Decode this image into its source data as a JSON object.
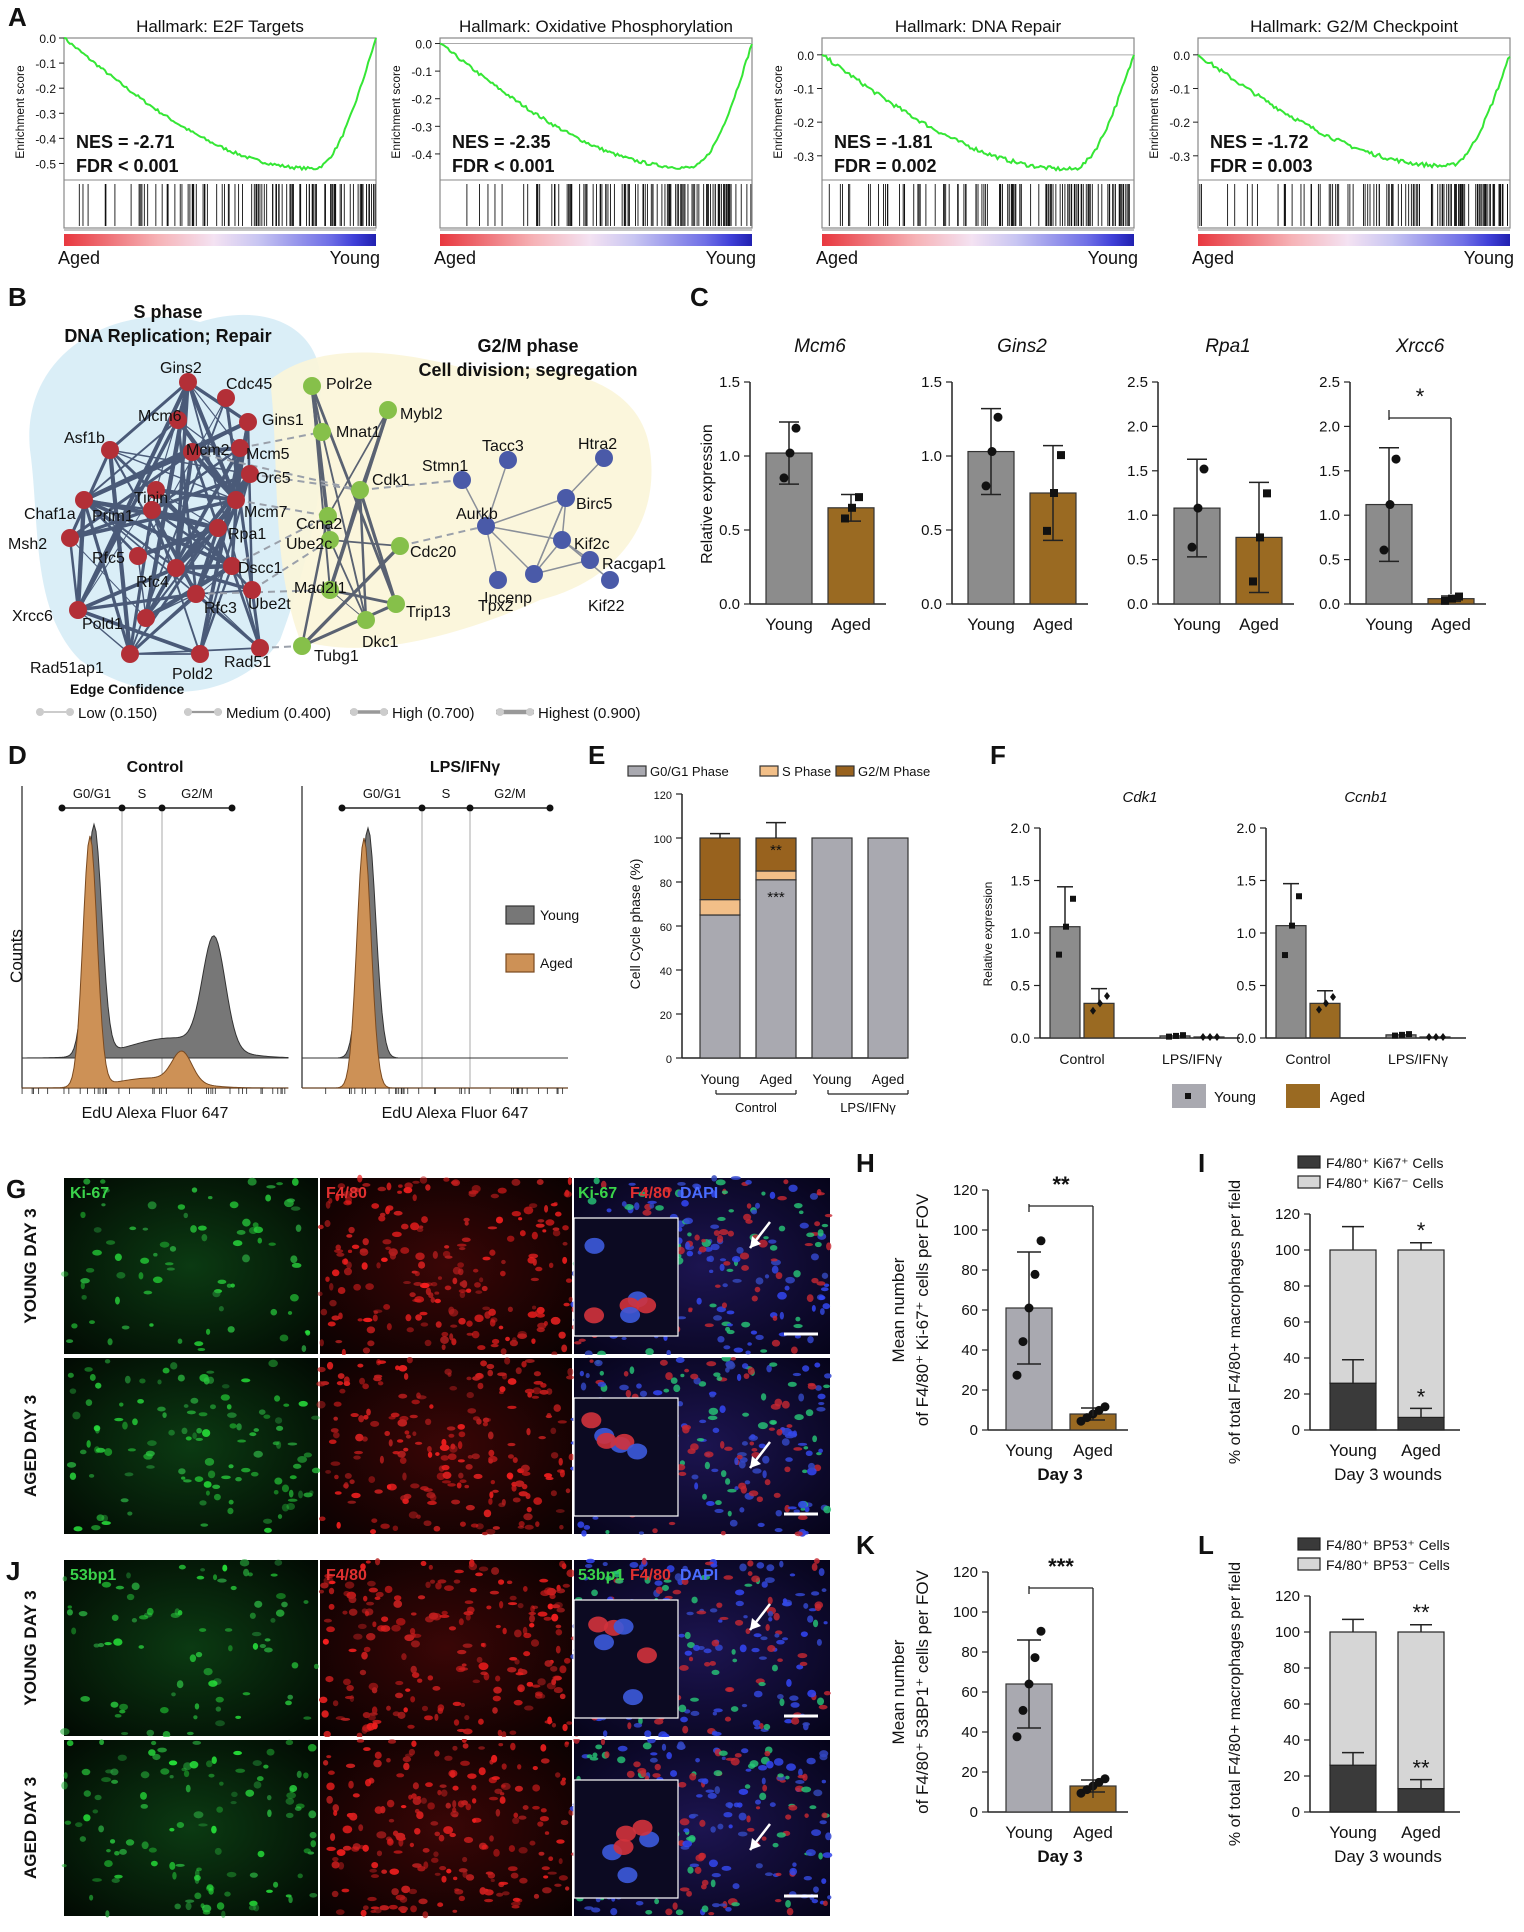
{
  "panels": {
    "A": "A",
    "B": "B",
    "C": "C",
    "D": "D",
    "E": "E",
    "F": "F",
    "G": "G",
    "H": "H",
    "I": "I",
    "J": "J",
    "K": "K",
    "L": "L"
  },
  "gsea": {
    "ylabel": "Enrichment score",
    "left": "Aged",
    "right": "Young",
    "plots": [
      {
        "title": "Hallmark: E2F Targets",
        "nes": "NES = -2.71",
        "fdr": "FDR < 0.001",
        "ticks": [
          "0.0",
          "-0.1",
          "-0.2",
          "-0.3",
          "-0.4",
          "-0.5"
        ],
        "ymin": -0.55,
        "ymax": 0.0,
        "min": -0.52
      },
      {
        "title": "Hallmark: Oxidative Phosphorylation",
        "nes": "NES = -2.35",
        "fdr": "FDR < 0.001",
        "ticks": [
          "0.0",
          "-0.1",
          "-0.2",
          "-0.3",
          "-0.4"
        ],
        "ymin": -0.48,
        "ymax": 0.02,
        "min": -0.45
      },
      {
        "title": "Hallmark: DNA Repair",
        "nes": "NES = -1.81",
        "fdr": "FDR = 0.002",
        "ticks": [
          "0.0",
          "-0.1",
          "-0.2",
          "-0.3"
        ],
        "ymin": -0.36,
        "ymax": 0.05,
        "min": -0.34
      },
      {
        "title": "Hallmark: G2/M Checkpoint",
        "nes": "NES = -1.72",
        "fdr": "FDR = 0.003",
        "ticks": [
          "0.0",
          "-0.1",
          "-0.2",
          "-0.3"
        ],
        "ymin": -0.36,
        "ymax": 0.05,
        "min": -0.33
      }
    ]
  },
  "network": {
    "s_title1": "S phase",
    "s_title2": "DNA Replication; Repair",
    "g_title1": "G2/M phase",
    "g_title2": "Cell division; segregation",
    "edge_title": "Edge Confidence",
    "edges": [
      "Low (0.150)",
      "Medium (0.400)",
      "High (0.700)",
      "Highest (0.900)"
    ],
    "red": [
      "Gins2",
      "Cdc45",
      "Gins1",
      "Mcm6",
      "Mcm5",
      "Asf1b",
      "Mcm2",
      "Orc5",
      "Tipin",
      "Prim1",
      "Mcm7",
      "Chaf1a",
      "Rpa1",
      "Msh2",
      "Rfc5",
      "Dscc1",
      "Rfc4",
      "Ube2t",
      "Rfc3",
      "Xrcc6",
      "Pold1",
      "Rad51ap1",
      "Pold2",
      "Rad51"
    ],
    "green": [
      "Polr2e",
      "Mybl2",
      "Mnat1",
      "Cdk1",
      "Ccna2",
      "Ube2c",
      "Cdc20",
      "Mad2l1",
      "Trip13",
      "Dkc1",
      "Tubg1"
    ],
    "blue": [
      "Stmn1",
      "Tacc3",
      "Htra2",
      "Birc5",
      "Aurkb",
      "Kif2c",
      "Racgap1",
      "Incenp",
      "Tpx2",
      "Kif22"
    ]
  },
  "panelC": {
    "ylabel": "Relative expression",
    "groups": [
      "Young",
      "Aged"
    ],
    "genes": [
      {
        "name": "Mcm6",
        "ticks": [
          "0.0",
          "0.5",
          "1.0",
          "1.5"
        ],
        "ymax": 1.5,
        "values": [
          1.02,
          0.65
        ],
        "err": [
          0.21,
          0.09
        ],
        "sig": ""
      },
      {
        "name": "Gins2",
        "ticks": [
          "0.0",
          "0.5",
          "1.0",
          "1.5"
        ],
        "ymax": 1.5,
        "values": [
          1.03,
          0.75
        ],
        "err": [
          0.29,
          0.32
        ],
        "sig": ""
      },
      {
        "name": "Rpa1",
        "ticks": [
          "0.0",
          "0.5",
          "1.0",
          "1.5",
          "2.0",
          "2.5"
        ],
        "ymax": 2.5,
        "values": [
          1.08,
          0.75
        ],
        "err": [
          0.55,
          0.62
        ],
        "sig": ""
      },
      {
        "name": "Xrcc6",
        "ticks": [
          "0.0",
          "0.5",
          "1.0",
          "1.5",
          "2.0",
          "2.5"
        ],
        "ymax": 2.5,
        "values": [
          1.12,
          0.06
        ],
        "err": [
          0.64,
          0.03
        ],
        "sig": "*"
      }
    ]
  },
  "panelD": {
    "titles": [
      "Control",
      "LPS/IFNγ"
    ],
    "phases": [
      "G0/G1",
      "S",
      "G2/M"
    ],
    "ylabel": "Counts",
    "xlabel": "EdU Alexa Fluor 647",
    "legend": [
      "Young",
      "Aged"
    ]
  },
  "panelE": {
    "legend": [
      "G0/G1 Phase",
      "S Phase",
      "G2/M Phase"
    ],
    "ylabel": "Cell Cycle phase (%)",
    "ticks": [
      "0",
      "20",
      "40",
      "60",
      "80",
      "100",
      "120"
    ],
    "ymax": 120,
    "bars": [
      {
        "label": "Young",
        "g0": 65,
        "s": 7,
        "g2": 28,
        "err": 2
      },
      {
        "label": "Aged",
        "g0": 81,
        "s": 4,
        "g2": 15,
        "err": 7
      },
      {
        "label": "Young",
        "g0": 100,
        "s": 0,
        "g2": 0,
        "err": 0
      },
      {
        "label": "Aged",
        "g0": 100,
        "s": 0,
        "g2": 0,
        "err": 0
      }
    ],
    "groups": [
      "Control",
      "LPS/IFNγ"
    ],
    "sig_g2": "**",
    "sig_g0": "***"
  },
  "panelF": {
    "ylabel": "Relative expression",
    "ticks": [
      "0.0",
      "0.5",
      "1.0",
      "1.5",
      "2.0"
    ],
    "ymax": 2.0,
    "conds": [
      "Control",
      "LPS/IFNγ"
    ],
    "genes": [
      {
        "name": "Cdk1",
        "young": [
          1.06,
          0.02
        ],
        "aged": [
          0.33,
          0.01
        ],
        "eyoung": [
          0.38,
          0.01
        ],
        "eaged": [
          0.14,
          0.0
        ]
      },
      {
        "name": "Ccnb1",
        "young": [
          1.07,
          0.03
        ],
        "aged": [
          0.33,
          0.01
        ],
        "eyoung": [
          0.4,
          0.01
        ],
        "eaged": [
          0.12,
          0.0
        ]
      }
    ],
    "legend": [
      "Young",
      "Aged"
    ]
  },
  "micro": {
    "g_labels": [
      "Ki-67",
      "F4/80"
    ],
    "g_merge": [
      "Ki-67",
      "F4/80",
      "DAPI"
    ],
    "j_labels": [
      "53bp1",
      "F4/80"
    ],
    "j_merge": [
      "53bp1",
      "F4/80",
      "DAPI"
    ],
    "rows_g": [
      "YOUNG DAY 3",
      "AGED DAY 3"
    ],
    "rows_j": [
      "YOUNG DAY 3",
      "AGED DAY 3"
    ]
  },
  "panelH": {
    "ylabel1": "Mean number",
    "ylabel2": "of F4/80⁺ Ki-67⁺ cells per FOV",
    "ticks": [
      "0",
      "20",
      "40",
      "60",
      "80",
      "100",
      "120"
    ],
    "ymax": 120,
    "groups": [
      "Young",
      "Aged"
    ],
    "values": [
      61,
      8
    ],
    "err": [
      28,
      3
    ],
    "xlabel": "Day 3",
    "sig": "**"
  },
  "panelI": {
    "legend": [
      "F4/80⁺ Ki67⁺ Cells",
      "F4/80⁺ Ki67⁻ Cells"
    ],
    "ylabel": "% of total F4/80+ macrophages per field",
    "ticks": [
      "0",
      "20",
      "40",
      "60",
      "80",
      "100",
      "120"
    ],
    "ymax": 120,
    "groups": [
      "Young",
      "Aged"
    ],
    "pos": [
      26,
      7
    ],
    "epos": [
      13,
      5
    ],
    "eneg": [
      13,
      4
    ],
    "xlabel": "Day 3 wounds",
    "sig": "*"
  },
  "panelK": {
    "ylabel1": "Mean number",
    "ylabel2": "of F4/80⁺ 53BP1⁺ cells per FOV",
    "ticks": [
      "0",
      "20",
      "40",
      "60",
      "80",
      "100",
      "120"
    ],
    "ymax": 120,
    "groups": [
      "Young",
      "Aged"
    ],
    "values": [
      64,
      13
    ],
    "err": [
      22,
      3
    ],
    "xlabel": "Day 3",
    "sig": "***"
  },
  "panelL": {
    "legend": [
      "F4/80⁺ BP53⁺ Cells",
      "F4/80⁺ BP53⁻ Cells"
    ],
    "ylabel": "% of total F4/80+ macrophages per field",
    "ticks": [
      "0",
      "20",
      "40",
      "60",
      "80",
      "100",
      "120"
    ],
    "ymax": 120,
    "groups": [
      "Young",
      "Aged"
    ],
    "pos": [
      26,
      13
    ],
    "epos": [
      7,
      5
    ],
    "eneg": [
      7,
      4
    ],
    "xlabel": "Day 3 wounds",
    "sig": "**"
  },
  "chart_data": [
    {
      "type": "line",
      "title": "Hallmark: E2F Targets",
      "ylabel": "Enrichment score",
      "ylim": [
        -0.55,
        0.0
      ]
    },
    {
      "type": "line",
      "title": "Hallmark: Oxidative Phosphorylation",
      "ylabel": "Enrichment score",
      "ylim": [
        -0.48,
        0.02
      ]
    },
    {
      "type": "line",
      "title": "Hallmark: DNA Repair",
      "ylabel": "Enrichment score",
      "ylim": [
        -0.36,
        0.05
      ]
    },
    {
      "type": "line",
      "title": "Hallmark: G2/M Checkpoint",
      "ylabel": "Enrichment score",
      "ylim": [
        -0.36,
        0.05
      ]
    },
    {
      "type": "bar",
      "title": "Mcm6",
      "categories": [
        "Young",
        "Aged"
      ],
      "values": [
        1.02,
        0.65
      ],
      "ylabel": "Relative expression",
      "ylim": [
        0,
        1.5
      ]
    },
    {
      "type": "bar",
      "title": "Gins2",
      "categories": [
        "Young",
        "Aged"
      ],
      "values": [
        1.03,
        0.75
      ],
      "ylim": [
        0,
        1.5
      ]
    },
    {
      "type": "bar",
      "title": "Rpa1",
      "categories": [
        "Young",
        "Aged"
      ],
      "values": [
        1.08,
        0.75
      ],
      "ylim": [
        0,
        2.5
      ]
    },
    {
      "type": "bar",
      "title": "Xrcc6",
      "categories": [
        "Young",
        "Aged"
      ],
      "values": [
        1.12,
        0.06
      ],
      "ylim": [
        0,
        2.5
      ]
    },
    {
      "type": "bar",
      "ylabel": "Cell Cycle phase (%)",
      "categories": [
        "Young",
        "Aged",
        "Young",
        "Aged"
      ],
      "series": [
        {
          "name": "G0/G1 Phase",
          "values": [
            65,
            81,
            100,
            100
          ]
        },
        {
          "name": "S Phase",
          "values": [
            7,
            4,
            0,
            0
          ]
        },
        {
          "name": "G2/M Phase",
          "values": [
            28,
            15,
            0,
            0
          ]
        }
      ],
      "ylim": [
        0,
        120
      ]
    },
    {
      "type": "bar",
      "title": "Cdk1",
      "categories": [
        "Control",
        "LPS/IFNγ"
      ],
      "series": [
        {
          "name": "Young",
          "values": [
            1.06,
            0.02
          ]
        },
        {
          "name": "Aged",
          "values": [
            0.33,
            0.01
          ]
        }
      ],
      "ylim": [
        0,
        2.0
      ]
    },
    {
      "type": "bar",
      "title": "Ccnb1",
      "categories": [
        "Control",
        "LPS/IFNγ"
      ],
      "series": [
        {
          "name": "Young",
          "values": [
            1.07,
            0.03
          ]
        },
        {
          "name": "Aged",
          "values": [
            0.33,
            0.01
          ]
        }
      ],
      "ylim": [
        0,
        2.0
      ]
    },
    {
      "type": "bar",
      "categories": [
        "Young",
        "Aged"
      ],
      "values": [
        61,
        8
      ],
      "xlabel": "Day 3",
      "ylim": [
        0,
        120
      ]
    },
    {
      "type": "bar",
      "categories": [
        "Young",
        "Aged"
      ],
      "series": [
        {
          "name": "F4/80⁺ Ki67⁺ Cells",
          "values": [
            26,
            7
          ]
        },
        {
          "name": "F4/80⁺ Ki67⁻ Cells",
          "values": [
            74,
            93
          ]
        }
      ],
      "xlabel": "Day 3 wounds",
      "ylim": [
        0,
        120
      ]
    },
    {
      "type": "bar",
      "categories": [
        "Young",
        "Aged"
      ],
      "values": [
        64,
        13
      ],
      "xlabel": "Day 3",
      "ylim": [
        0,
        120
      ]
    },
    {
      "type": "bar",
      "categories": [
        "Young",
        "Aged"
      ],
      "series": [
        {
          "name": "F4/80⁺ BP53⁺ Cells",
          "values": [
            26,
            13
          ]
        },
        {
          "name": "F4/80⁺ BP53⁻ Cells",
          "values": [
            74,
            87
          ]
        }
      ],
      "xlabel": "Day 3 wounds",
      "ylim": [
        0,
        120
      ]
    }
  ]
}
